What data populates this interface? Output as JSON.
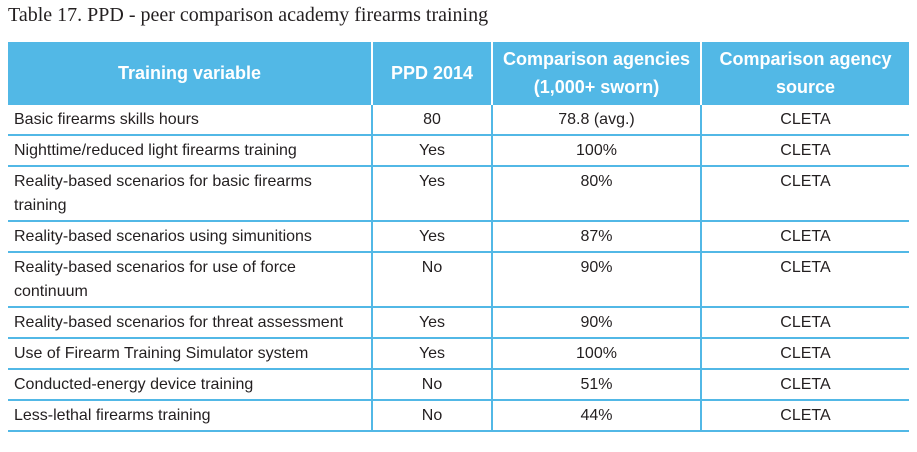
{
  "caption": "Table 17. PPD - peer comparison academy firearms training",
  "table": {
    "headers": [
      "Training variable",
      "PPD 2014",
      "Comparison agencies (1,000+ sworn)",
      "Comparison agency source"
    ],
    "rows": [
      [
        "Basic firearms skills hours",
        "80",
        "78.8 (avg.)",
        "CLETA"
      ],
      [
        "Nighttime/reduced light firearms training",
        "Yes",
        "100%",
        "CLETA"
      ],
      [
        "Reality-based scenarios for basic firearms training",
        "Yes",
        "80%",
        "CLETA"
      ],
      [
        "Reality-based scenarios using simunitions",
        "Yes",
        "87%",
        "CLETA"
      ],
      [
        "Reality-based scenarios for use of force continuum",
        "No",
        "90%",
        "CLETA"
      ],
      [
        "Reality-based scenarios for threat assessment",
        "Yes",
        "90%",
        "CLETA"
      ],
      [
        "Use of Firearm Training Simulator system",
        "Yes",
        "100%",
        "CLETA"
      ],
      [
        "Conducted-energy device training",
        "No",
        "51%",
        "CLETA"
      ],
      [
        "Less-lethal firearms training",
        "No",
        "44%",
        "CLETA"
      ]
    ]
  },
  "colors": {
    "header_bg": "#52b8e6",
    "header_text": "#ffffff",
    "rule": "#52b8e6"
  }
}
